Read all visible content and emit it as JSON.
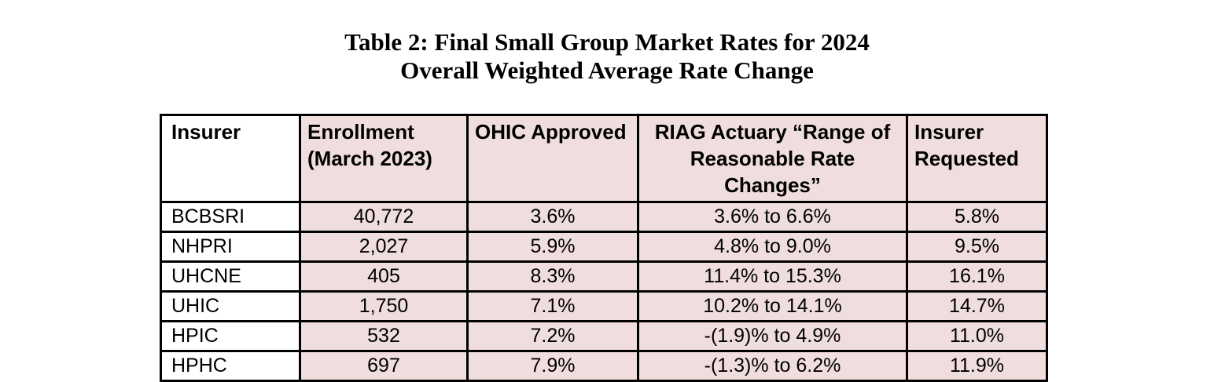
{
  "title": {
    "line1": "Table 2: Final Small Group Market Rates for 2024",
    "line2": "Overall Weighted Average Rate Change"
  },
  "table": {
    "columns": [
      {
        "line1": "Insurer",
        "line2": ""
      },
      {
        "line1": "Enrollment",
        "line2": "(March 2023)"
      },
      {
        "line1": "OHIC Approved",
        "line2": ""
      },
      {
        "line1": "RIAG Actuary “Range of",
        "line2": "Reasonable Rate Changes”"
      },
      {
        "line1": "Insurer",
        "line2": "Requested"
      }
    ],
    "rows": [
      {
        "insurer": "BCBSRI",
        "enrollment": "40,772",
        "ohic_approved": "3.6%",
        "riag_range": "3.6% to 6.6%",
        "insurer_requested": "5.8%"
      },
      {
        "insurer": "NHPRI",
        "enrollment": "2,027",
        "ohic_approved": "5.9%",
        "riag_range": "4.8% to 9.0%",
        "insurer_requested": "9.5%"
      },
      {
        "insurer": "UHCNE",
        "enrollment": "405",
        "ohic_approved": "8.3%",
        "riag_range": "11.4% to 15.3%",
        "insurer_requested": "16.1%"
      },
      {
        "insurer": "UHIC",
        "enrollment": "1,750",
        "ohic_approved": "7.1%",
        "riag_range": "10.2% to 14.1%",
        "insurer_requested": "14.7%"
      },
      {
        "insurer": "HPIC",
        "enrollment": "532",
        "ohic_approved": "7.2%",
        "riag_range": "-(1.9)% to 4.9%",
        "insurer_requested": "11.0%"
      },
      {
        "insurer": "HPHC",
        "enrollment": "697",
        "ohic_approved": "7.9%",
        "riag_range": "-(1.3)% to 6.2%",
        "insurer_requested": "11.9%"
      }
    ],
    "colors": {
      "cell_fill": "#F0DEDE",
      "insurer_column_fill": "#FFFFFF",
      "border": "#000000",
      "text": "#000000",
      "page_background": "#FFFFFF"
    }
  }
}
